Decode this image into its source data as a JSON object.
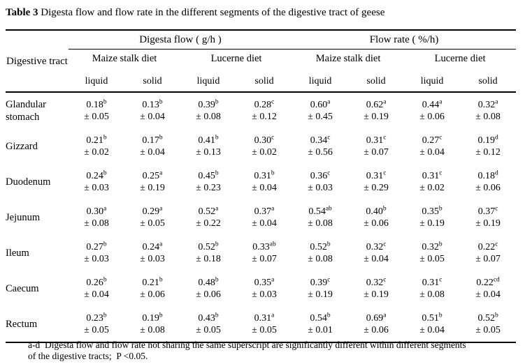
{
  "title": {
    "label": "Table 3",
    "text": "Digesta flow and flow rate in the different segments of the digestive tract of geese"
  },
  "table": {
    "corner_header": "Digestive tract",
    "group_headers": [
      "Digesta flow ( g/h )",
      "Flow rate ( %/h)"
    ],
    "diet_headers": [
      "Maize stalk diet",
      "Lucerne diet",
      "Maize stalk diet",
      "Lucerne diet"
    ],
    "phase_headers": [
      "liquid",
      "solid",
      "liquid",
      "solid",
      "liquid",
      "solid",
      "liquid",
      "solid"
    ],
    "rows": [
      {
        "segment": "Glandular stomach",
        "cells": [
          {
            "value": "0.18",
            "sup": "b",
            "sd": "± 0.05"
          },
          {
            "value": "0.13",
            "sup": "b",
            "sd": "± 0.04"
          },
          {
            "value": "0.39",
            "sup": "b",
            "sd": "± 0.08"
          },
          {
            "value": "0.28",
            "sup": "c",
            "sd": "± 0.12"
          },
          {
            "value": "0.60",
            "sup": "a",
            "sd": "± 0.45"
          },
          {
            "value": "0.62",
            "sup": "a",
            "sd": "± 0.19"
          },
          {
            "value": "0.44",
            "sup": "a",
            "sd": "± 0.06"
          },
          {
            "value": "0.32",
            "sup": "a",
            "sd": "± 0.08"
          }
        ]
      },
      {
        "segment": "Gizzard",
        "cells": [
          {
            "value": "0.21",
            "sup": "b",
            "sd": "± 0.02"
          },
          {
            "value": "0.17",
            "sup": "b",
            "sd": "± 0.04"
          },
          {
            "value": "0.41",
            "sup": "b",
            "sd": "± 0.13"
          },
          {
            "value": "0.30",
            "sup": "c",
            "sd": "± 0.02"
          },
          {
            "value": "0.34",
            "sup": "c",
            "sd": "± 0.56"
          },
          {
            "value": "0.31",
            "sup": "c",
            "sd": "± 0.07"
          },
          {
            "value": "0.27",
            "sup": "c",
            "sd": "± 0.04"
          },
          {
            "value": "0.19",
            "sup": "d",
            "sd": "± 0.12"
          }
        ]
      },
      {
        "segment": "Duodenum",
        "cells": [
          {
            "value": "0.24",
            "sup": "b",
            "sd": "± 0.03"
          },
          {
            "value": "0.25",
            "sup": "a",
            "sd": "± 0.19"
          },
          {
            "value": "0.45",
            "sup": "b",
            "sd": "± 0.23"
          },
          {
            "value": "0.31",
            "sup": "b",
            "sd": "± 0.04"
          },
          {
            "value": "0.36",
            "sup": "c",
            "sd": "± 0.03"
          },
          {
            "value": "0.31",
            "sup": "c",
            "sd": "± 0.29"
          },
          {
            "value": "0.31",
            "sup": "c",
            "sd": "± 0.02"
          },
          {
            "value": "0.18",
            "sup": "d",
            "sd": "± 0.06"
          }
        ]
      },
      {
        "segment": "Jejunum",
        "cells": [
          {
            "value": "0.30",
            "sup": "a",
            "sd": "± 0.08"
          },
          {
            "value": "0.29",
            "sup": "a",
            "sd": "± 0.05"
          },
          {
            "value": "0.52",
            "sup": "a",
            "sd": "± 0.22"
          },
          {
            "value": "0.37",
            "sup": "a",
            "sd": "± 0.04"
          },
          {
            "value": "0.54",
            "sup": "ab",
            "sd": "± 0.08"
          },
          {
            "value": "0.40",
            "sup": "b",
            "sd": "± 0.06"
          },
          {
            "value": "0.35",
            "sup": "b",
            "sd": "± 0.19"
          },
          {
            "value": "0.37",
            "sup": "c",
            "sd": "± 0.19"
          }
        ]
      },
      {
        "segment": "Ileum",
        "cells": [
          {
            "value": "0.27",
            "sup": "b",
            "sd": "± 0.03"
          },
          {
            "value": "0.24",
            "sup": "a",
            "sd": "± 0.03"
          },
          {
            "value": "0.52",
            "sup": "b",
            "sd": "± 0.18"
          },
          {
            "value": "0.33",
            "sup": "ab",
            "sd": "± 0.07"
          },
          {
            "value": "0.52",
            "sup": "b",
            "sd": "± 0.08"
          },
          {
            "value": "0.32",
            "sup": "c",
            "sd": "± 0.04"
          },
          {
            "value": "0.32",
            "sup": "b",
            "sd": "± 0.05"
          },
          {
            "value": "0.22",
            "sup": "c",
            "sd": "± 0.07"
          }
        ]
      },
      {
        "segment": "Caecum",
        "cells": [
          {
            "value": "0.26",
            "sup": "b",
            "sd": "± 0.04"
          },
          {
            "value": "0.21",
            "sup": "b",
            "sd": "± 0.06"
          },
          {
            "value": "0.48",
            "sup": "b",
            "sd": "± 0.06"
          },
          {
            "value": "0.35",
            "sup": "a",
            "sd": "± 0.03"
          },
          {
            "value": "0.39",
            "sup": "c",
            "sd": "± 0.19"
          },
          {
            "value": "0.32",
            "sup": "c",
            "sd": "± 0.19"
          },
          {
            "value": "0.31",
            "sup": "c",
            "sd": "± 0.08"
          },
          {
            "value": "0.22",
            "sup": "cd",
            "sd": "± 0.04"
          }
        ]
      },
      {
        "segment": "Rectum",
        "cells": [
          {
            "value": "0.23",
            "sup": "b",
            "sd": "± 0.05"
          },
          {
            "value": "0.19",
            "sup": "b",
            "sd": "± 0.08"
          },
          {
            "value": "0.43",
            "sup": "b",
            "sd": "± 0.05"
          },
          {
            "value": "0.31",
            "sup": "a",
            "sd": "± 0.05"
          },
          {
            "value": "0.54",
            "sup": "b",
            "sd": "± 0.01"
          },
          {
            "value": "0.69",
            "sup": "a",
            "sd": "± 0.06"
          },
          {
            "value": "0.51",
            "sup": "b",
            "sd": "± 0.04"
          },
          {
            "value": "0.52",
            "sup": "b",
            "sd": "± 0.05"
          }
        ]
      }
    ]
  },
  "footnote": {
    "line1": "a-d  Digesta flow and flow rate not sharing the same superscript are significantly different within different segments",
    "line2": "of the digestive tracts;  P <0.05."
  },
  "colors": {
    "text": "#000000",
    "background": "#ffffff",
    "rule": "#000000"
  }
}
